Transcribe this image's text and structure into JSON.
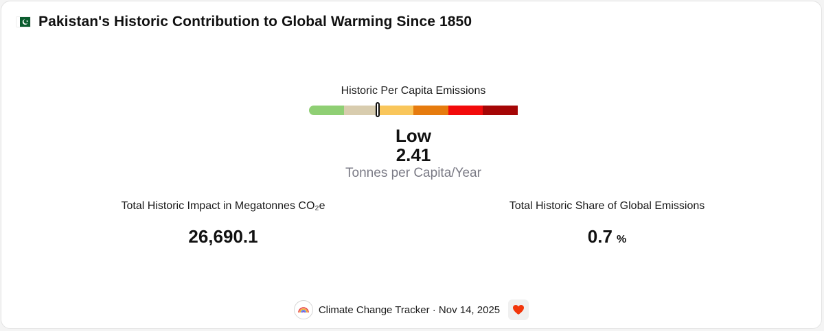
{
  "header": {
    "flag_icon": "pakistan-flag-icon",
    "title": "Pakistan's Historic Contribution to Global Warming Since 1850"
  },
  "gauge": {
    "label": "Historic Per Capita Emissions",
    "segments": [
      "#8fcf74",
      "#d8ccae",
      "#f9c65b",
      "#e67b0e",
      "#f20b0b",
      "#a50606"
    ],
    "marker_fraction": 0.33,
    "level": "Low",
    "value": "2.41",
    "units": "Tonnes per Capita/Year"
  },
  "stats": {
    "impact": {
      "label": "Total Historic Impact in Megatonnes CO₂e",
      "value": "26,690.1"
    },
    "share": {
      "label": "Total Historic Share of Global Emissions",
      "value": "0.7",
      "unit": "%"
    }
  },
  "footer": {
    "logo_icon": "rainbow-logo-icon",
    "text": "Climate Change Tracker · Nov 14, 2025",
    "heart_icon": "heart-icon"
  }
}
